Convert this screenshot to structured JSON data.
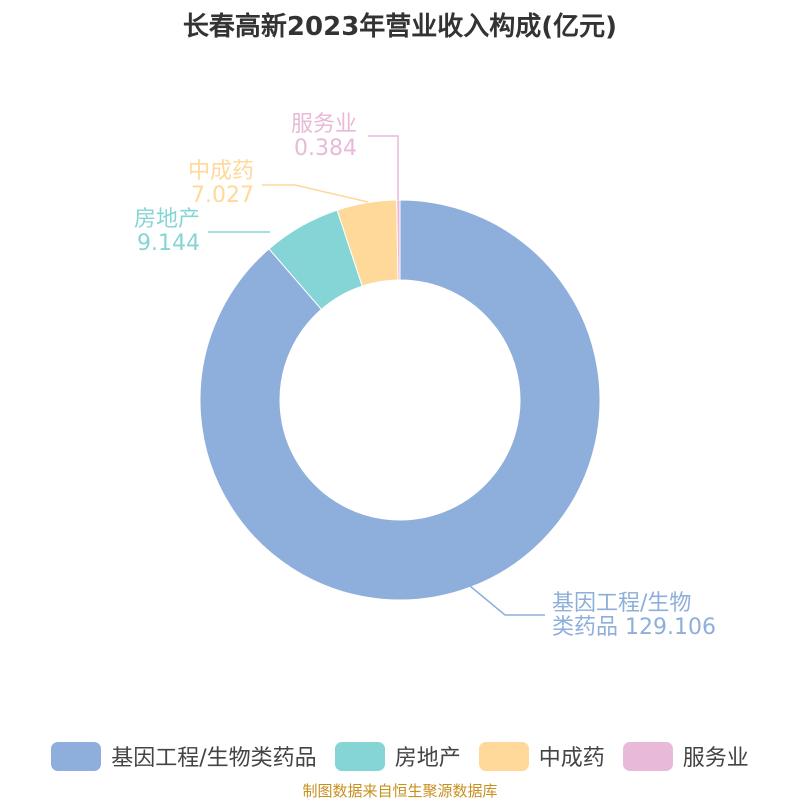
{
  "chart_data": {
    "type": "pie",
    "donut": true,
    "title": "长春高新2023年营业收入构成(亿元)",
    "categories": [
      "基因工程/生物类药品",
      "房地产",
      "中成药",
      "服务业"
    ],
    "values": [
      129.106,
      9.144,
      7.027,
      0.384
    ],
    "value_labels": [
      "129.106",
      "9.144",
      "7.027",
      "0.384"
    ],
    "colors": [
      "#8eaedb",
      "#86d5d6",
      "#fed99a",
      "#e8b9d8"
    ],
    "legend_position": "bottom"
  },
  "source": "制图数据来自恒生聚源数据库"
}
